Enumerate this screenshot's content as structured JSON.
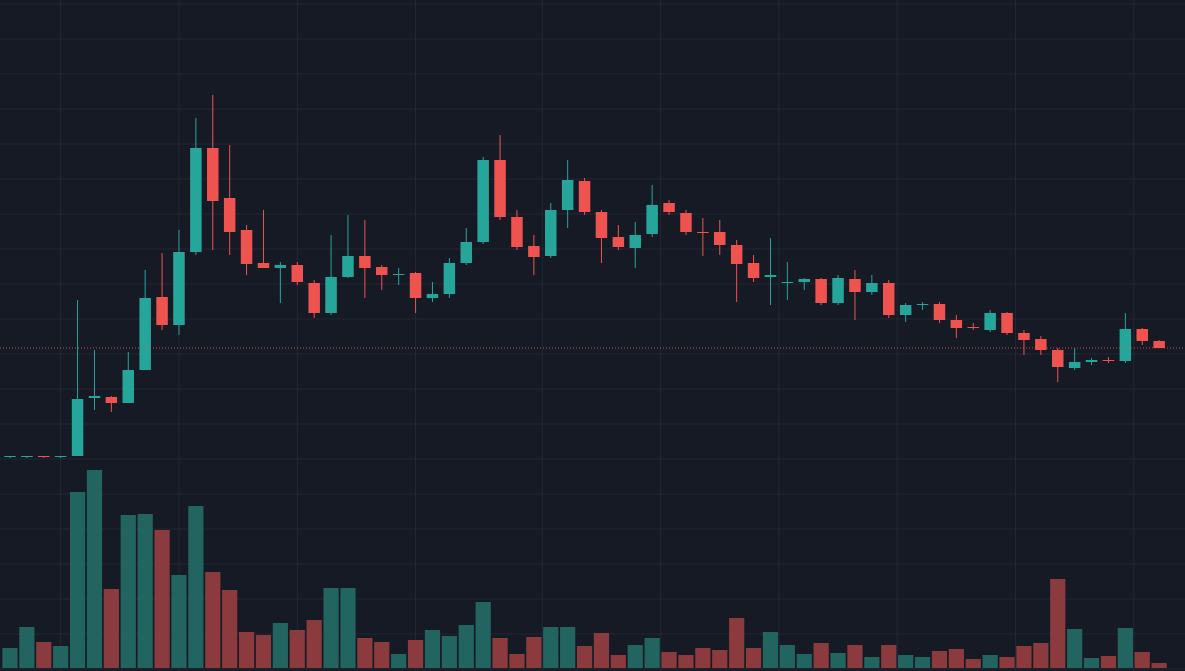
{
  "chart_data": {
    "type": "candlestick",
    "categories": [
      null,
      null,
      null,
      null,
      null,
      null,
      null,
      null,
      null,
      null,
      null,
      null,
      null,
      null,
      null,
      null,
      null,
      null,
      null,
      null,
      null,
      null,
      null,
      null,
      null,
      null,
      null,
      null,
      null,
      null,
      null,
      null,
      null,
      null,
      null,
      null,
      null,
      null,
      null,
      null,
      null,
      null,
      null,
      null,
      null,
      null,
      null,
      null,
      null,
      null,
      null,
      null,
      null,
      null,
      null,
      null,
      null,
      null,
      null,
      null,
      null,
      null,
      null,
      null,
      null,
      null,
      null,
      null,
      null
    ],
    "open": [
      214,
      214,
      215,
      214,
      215,
      273,
      274,
      268,
      301,
      374,
      346,
      419,
      523,
      473,
      441,
      408,
      403,
      406,
      388,
      358,
      394,
      415,
      404,
      396,
      398,
      373,
      377,
      408,
      429,
      511,
      454,
      425,
      415,
      461,
      490,
      459,
      434,
      423,
      437,
      468,
      458,
      439,
      439,
      426,
      408,
      394,
      388,
      389,
      392,
      368,
      392,
      379,
      388,
      356,
      366,
      367,
      351,
      344,
      341,
      358,
      338,
      332,
      321,
      303,
      309,
      311,
      310,
      342,
      330
    ],
    "high": [
      215,
      215,
      215,
      215,
      371,
      321,
      275,
      319,
      401,
      418,
      441,
      553,
      576,
      526,
      446,
      461,
      409,
      409,
      391,
      436,
      456,
      451,
      406,
      403,
      399,
      389,
      413,
      443,
      514,
      536,
      461,
      436,
      468,
      511,
      493,
      461,
      446,
      449,
      486,
      471,
      461,
      453,
      451,
      431,
      416,
      433,
      409,
      393,
      393,
      396,
      401,
      396,
      391,
      368,
      369,
      369,
      356,
      348,
      361,
      359,
      341,
      335,
      323,
      323,
      313,
      314,
      358,
      343,
      331
    ],
    "low": [
      213,
      213,
      213,
      213,
      215,
      261,
      259,
      268,
      301,
      341,
      336,
      416,
      421,
      416,
      396,
      403,
      368,
      386,
      353,
      356,
      393,
      373,
      381,
      386,
      358,
      369,
      373,
      406,
      427,
      451,
      421,
      396,
      413,
      443,
      456,
      408,
      421,
      403,
      434,
      456,
      436,
      415,
      416,
      369,
      389,
      366,
      371,
      381,
      366,
      366,
      351,
      376,
      353,
      349,
      361,
      348,
      333,
      341,
      339,
      336,
      316,
      316,
      289,
      301,
      306,
      308,
      308,
      326,
      323
    ],
    "close": [
      215,
      215,
      214,
      215,
      272,
      275,
      268,
      301,
      373,
      346,
      419,
      523,
      470,
      439,
      407,
      403,
      406,
      389,
      358,
      394,
      415,
      403,
      396,
      397,
      373,
      377,
      408,
      429,
      511,
      454,
      424,
      414,
      461,
      491,
      459,
      433,
      424,
      436,
      466,
      459,
      439,
      438,
      426,
      407,
      393,
      396,
      389,
      392,
      368,
      393,
      379,
      388,
      356,
      366,
      367,
      351,
      343,
      343,
      358,
      338,
      331,
      321,
      304,
      309,
      311,
      310,
      342,
      330,
      323
    ],
    "volume": [
      20,
      41,
      26,
      22,
      176,
      198,
      79,
      153,
      154,
      138,
      93,
      162,
      96,
      78,
      36,
      33,
      45,
      38,
      48,
      80,
      80,
      30,
      26,
      14,
      28,
      38,
      32,
      43,
      66,
      30,
      14,
      31,
      41,
      41,
      22,
      35,
      13,
      23,
      30,
      16,
      13,
      20,
      18,
      50,
      20,
      36,
      23,
      14,
      25,
      15,
      23,
      11,
      23,
      13,
      11,
      17,
      19,
      9,
      13,
      11,
      22,
      25,
      89,
      39,
      10,
      12,
      40,
      16,
      5
    ],
    "up_color": "#26a69a",
    "down_color": "#ef5350",
    "volume_up_color": "#22645f",
    "volume_down_color": "#8b3a3d",
    "ylim": [
      0,
      671
    ],
    "yticks": [
      667,
      632,
      597,
      562,
      527,
      492,
      457,
      422,
      387,
      352,
      317,
      282,
      247,
      212,
      177,
      142,
      107,
      72,
      37,
      2
    ],
    "volume_ylim": [
      0,
      210
    ],
    "xlim": [
      -0.59,
      69.53
    ],
    "xticks": [
      3,
      10,
      17,
      24,
      31.5,
      38.5,
      45.5,
      52.5,
      59.5,
      66.5
    ],
    "last_price_line": 323,
    "grid": true
  }
}
